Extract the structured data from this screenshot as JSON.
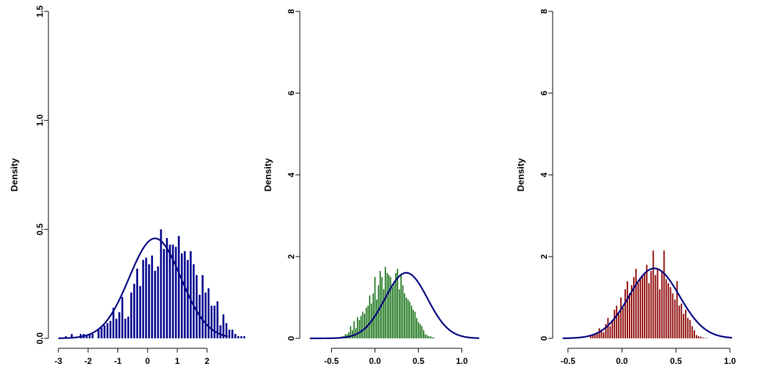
{
  "chart_data": [
    {
      "type": "bar",
      "ylabel": "Density",
      "xlim": [
        -3,
        2.7
      ],
      "ylim": [
        0,
        1.5
      ],
      "xticks": [
        "-3",
        "-2",
        "-1",
        "0",
        "1",
        "2"
      ],
      "yticks": [
        "0.0",
        "0.5",
        "1.0",
        "1.5"
      ],
      "x_tick_values": [
        -3,
        -2,
        -1,
        0,
        1,
        2
      ],
      "y_tick_values": [
        0,
        0.5,
        1.0,
        1.5
      ],
      "bar_color": "#00008B",
      "curve_color": "#000080",
      "bin_start": -2.8,
      "bin_width": 0.1,
      "values": [
        0.01,
        0,
        0.02,
        0,
        0,
        0.02,
        0.02,
        0.01,
        0.02,
        0.02,
        0,
        0.04,
        0.05,
        0.06,
        0.07,
        0.08,
        0.14,
        0.09,
        0.12,
        0.19,
        0.09,
        0.1,
        0.21,
        0.25,
        0.32,
        0.24,
        0.36,
        0.37,
        0.34,
        0.38,
        0.31,
        0.33,
        0.5,
        0.41,
        0.46,
        0.43,
        0.43,
        0.42,
        0.47,
        0.39,
        0.4,
        0.36,
        0.4,
        0.34,
        0.29,
        0.2,
        0.29,
        0.21,
        0.23,
        0.15,
        0.15,
        0.17,
        0.06,
        0.11,
        0.07,
        0.04,
        0.04,
        0.02,
        0.01,
        0.01,
        0.01
      ],
      "density_curve": {
        "mean": 0.25,
        "sd": 0.87,
        "scale": 1
      }
    },
    {
      "type": "bar",
      "ylabel": "Density",
      "xlim": [
        -0.75,
        1.2
      ],
      "ylim": [
        0,
        8
      ],
      "xticks": [
        "-0.5",
        "0.0",
        "0.5",
        "1.0"
      ],
      "yticks": [
        "0",
        "2",
        "4",
        "6",
        "8"
      ],
      "x_tick_values": [
        -0.5,
        0,
        0.5,
        1.0
      ],
      "y_tick_values": [
        0,
        2,
        4,
        6,
        8
      ],
      "bar_color": "#006400",
      "curve_color": "#000080",
      "bin_start": -0.45,
      "bin_width": 0.02,
      "values": [
        0.02,
        0.02,
        0,
        0.05,
        0.05,
        0.1,
        0.1,
        0.15,
        0.3,
        0.2,
        0.42,
        0.25,
        0.52,
        0.45,
        0.55,
        0.65,
        0.6,
        0.75,
        0.8,
        1.05,
        0.85,
        1.1,
        1.5,
        0.95,
        1.3,
        1.65,
        1.5,
        1.2,
        1.75,
        1.6,
        1.55,
        1.5,
        1.25,
        1.4,
        1.6,
        1.7,
        1.2,
        1.55,
        1.3,
        1.1,
        1.0,
        0.95,
        0.9,
        0.8,
        0.7,
        0.65,
        0.5,
        0.4,
        0.35,
        0.3,
        0.2,
        0.1,
        0.08,
        0.05,
        0.05,
        0.03,
        0.02
      ],
      "density_curve": {
        "mean": 0.36,
        "sd": 0.245,
        "scale": 0.985
      }
    },
    {
      "type": "bar",
      "ylabel": "Density",
      "xlim": [
        -0.55,
        1.02
      ],
      "ylim": [
        0,
        8
      ],
      "xticks": [
        "-0.5",
        "0.0",
        "0.5",
        "1.0"
      ],
      "yticks": [
        "0",
        "2",
        "4",
        "6",
        "8"
      ],
      "x_tick_values": [
        -0.5,
        0,
        0.5,
        1.0
      ],
      "y_tick_values": [
        0,
        2,
        4,
        6,
        8
      ],
      "bar_color": "#8B0000",
      "curve_color": "#000080",
      "bin_start": -0.3,
      "bin_width": 0.02,
      "values": [
        0.08,
        0.1,
        0.12,
        0.15,
        0.25,
        0.2,
        0.15,
        0.35,
        0.5,
        0.3,
        0.45,
        0.7,
        0.8,
        0.6,
        1.0,
        0.75,
        1.2,
        1.4,
        1.1,
        1.3,
        1.5,
        1.7,
        1.35,
        1.45,
        1.5,
        1.6,
        1.8,
        1.35,
        1.65,
        2.15,
        1.55,
        1.7,
        1.2,
        1.65,
        2.15,
        1.45,
        1.35,
        1.25,
        1.1,
        0.95,
        1.4,
        0.8,
        0.85,
        0.6,
        0.7,
        0.5,
        0.45,
        0.3,
        0.2,
        0.08,
        0.05,
        0.04,
        0.02,
        0.01,
        0.01
      ],
      "density_curve": {
        "mean": 0.3,
        "sd": 0.233,
        "scale": 1
      }
    }
  ]
}
